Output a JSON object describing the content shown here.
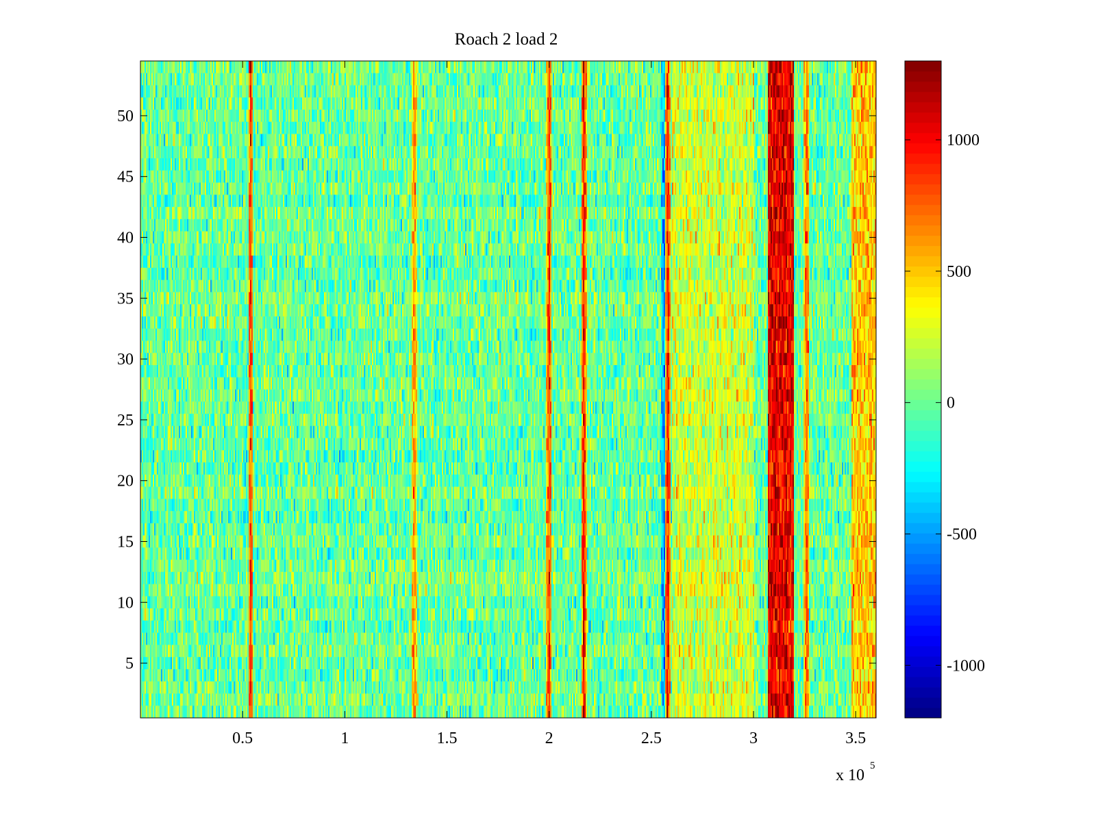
{
  "chart_data": {
    "type": "heatmap",
    "title": "Roach 2 load 2",
    "xlabel": "",
    "ylabel": "",
    "x_exponent": "x 10",
    "x_exponent_power": "5",
    "xlim": [
      0,
      360000
    ],
    "ylim": [
      0.5,
      54.5
    ],
    "x_ticks": [
      50000,
      100000,
      150000,
      200000,
      250000,
      300000,
      350000
    ],
    "x_tick_labels": [
      "0.5",
      "1",
      "1.5",
      "2",
      "2.5",
      "3",
      "3.5"
    ],
    "y_ticks": [
      5,
      10,
      15,
      20,
      25,
      30,
      35,
      40,
      45,
      50
    ],
    "y_tick_labels": [
      "5",
      "10",
      "15",
      "20",
      "25",
      "30",
      "35",
      "40",
      "45",
      "50"
    ],
    "rows": 54,
    "colorbar": {
      "colormap": "jet",
      "range": [
        -1200,
        1300
      ],
      "ticks": [
        -1000,
        -500,
        0,
        500,
        1000
      ],
      "tick_labels": [
        "-1000",
        "-500",
        "0",
        "500",
        "1000"
      ]
    },
    "background_level": 0,
    "features": [
      {
        "kind": "narrow_band",
        "x": 54000,
        "level": 900
      },
      {
        "kind": "narrow_band",
        "x": 134000,
        "level": 700
      },
      {
        "kind": "narrow_band",
        "x": 200000,
        "level": 900
      },
      {
        "kind": "narrow_band",
        "x": 217000,
        "level": 1000
      },
      {
        "kind": "narrow_band",
        "x": 256000,
        "level": -500
      },
      {
        "kind": "narrow_band",
        "x": 258000,
        "level": 1000
      },
      {
        "kind": "wide_band",
        "x_range": [
          260000,
          300000
        ],
        "level": 250
      },
      {
        "kind": "wide_band",
        "x_range": [
          307000,
          320000
        ],
        "level": 1050
      },
      {
        "kind": "narrow_band",
        "x": 326000,
        "level": 800
      },
      {
        "kind": "wide_band",
        "x_range": [
          348000,
          360000
        ],
        "level": 500
      }
    ]
  }
}
